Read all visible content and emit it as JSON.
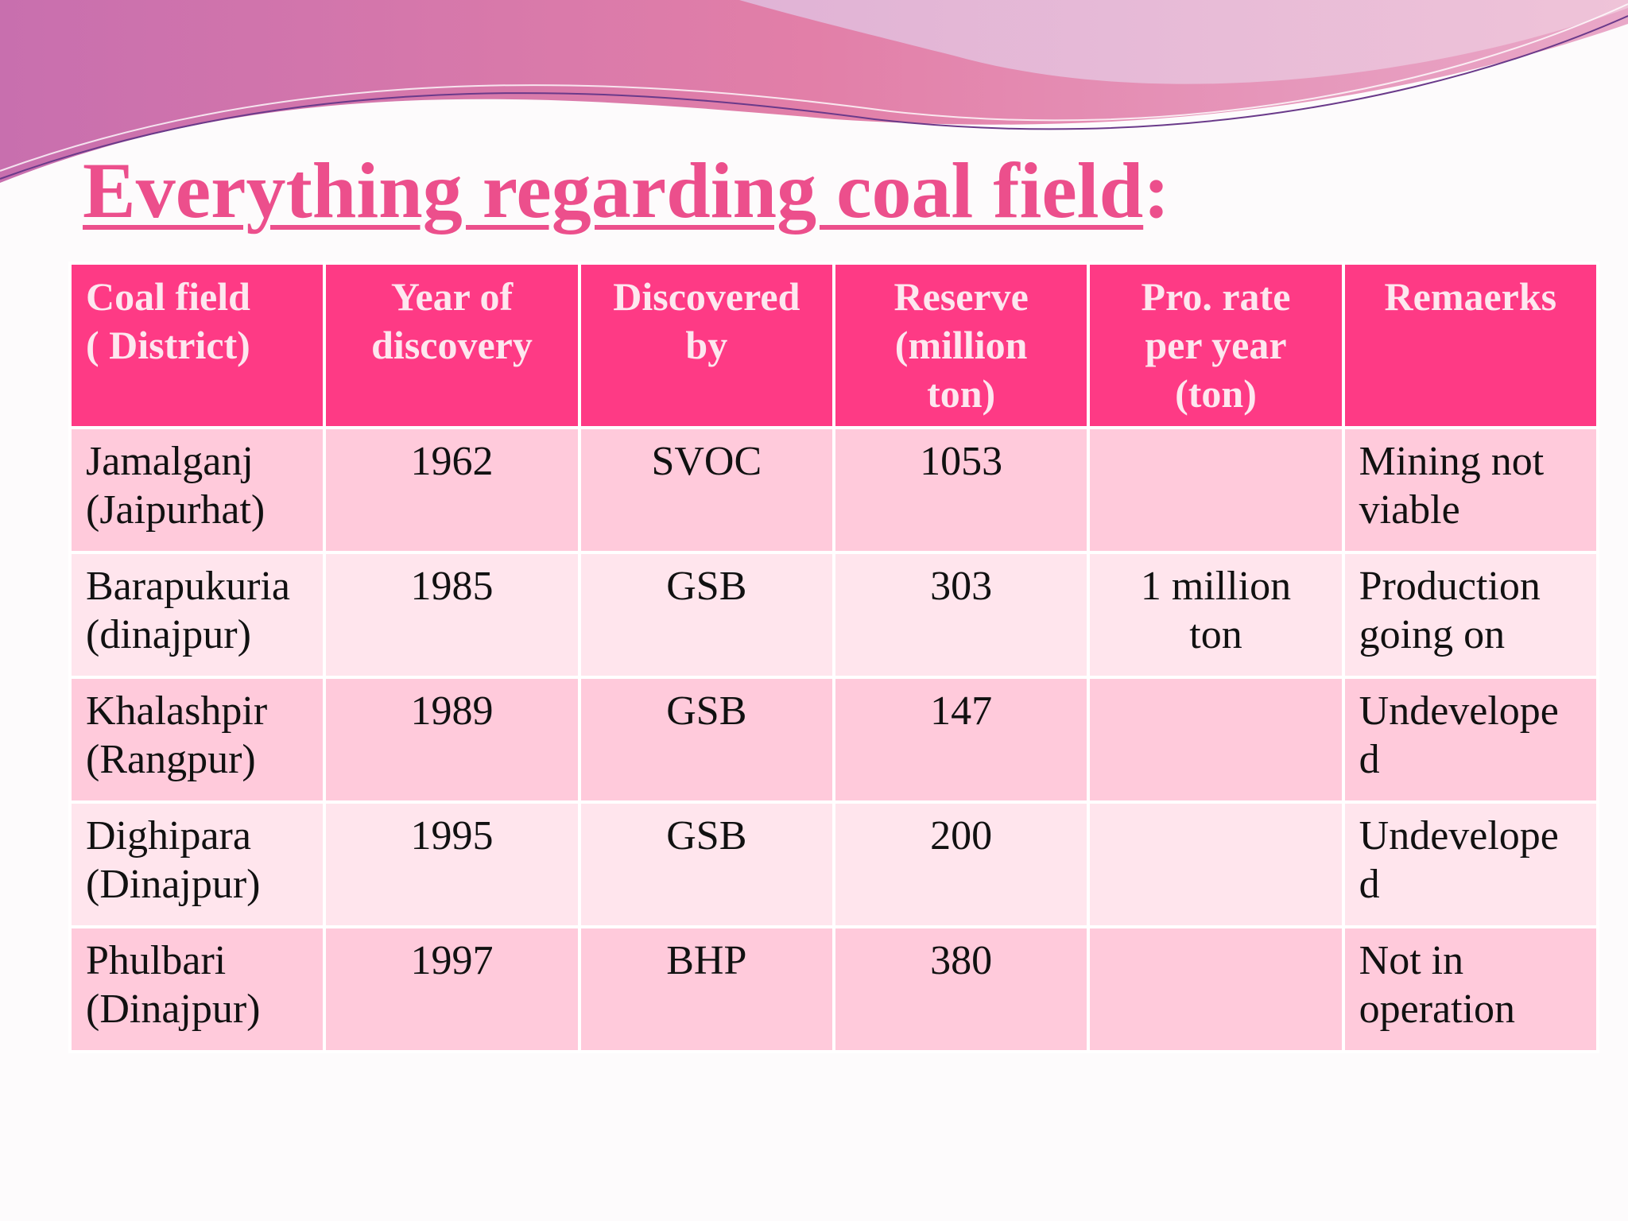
{
  "title": "Everything regarding coal field",
  "title_suffix": ":",
  "table": {
    "header": [
      "Coal field\n( District)",
      "Year  of\ndiscovery",
      "Discovered\nby",
      "Reserve\n(million\nton)",
      "Pro. rate\nper year\n(ton)",
      "Remaerks"
    ],
    "rows": [
      [
        "Jamalganj\n(Jaipurhat)",
        1962,
        "SVOC",
        1053,
        null,
        "Mining not\nviable"
      ],
      [
        "Barapukuria\n(dinajpur)",
        1985,
        "GSB",
        303,
        "1 million\nton",
        "Production\ngoing on"
      ],
      [
        "Khalashpir\n(Rangpur)",
        1989,
        "GSB",
        147,
        null,
        "Undevelope\nd"
      ],
      [
        "Dighipara\n(Dinajpur)",
        1995,
        "GSB",
        200,
        null,
        "Undevelope\nd"
      ],
      [
        "Phulbari\n(Dinajpur)",
        1997,
        "BHP",
        380,
        null,
        "Not in\noperation"
      ]
    ]
  }
}
